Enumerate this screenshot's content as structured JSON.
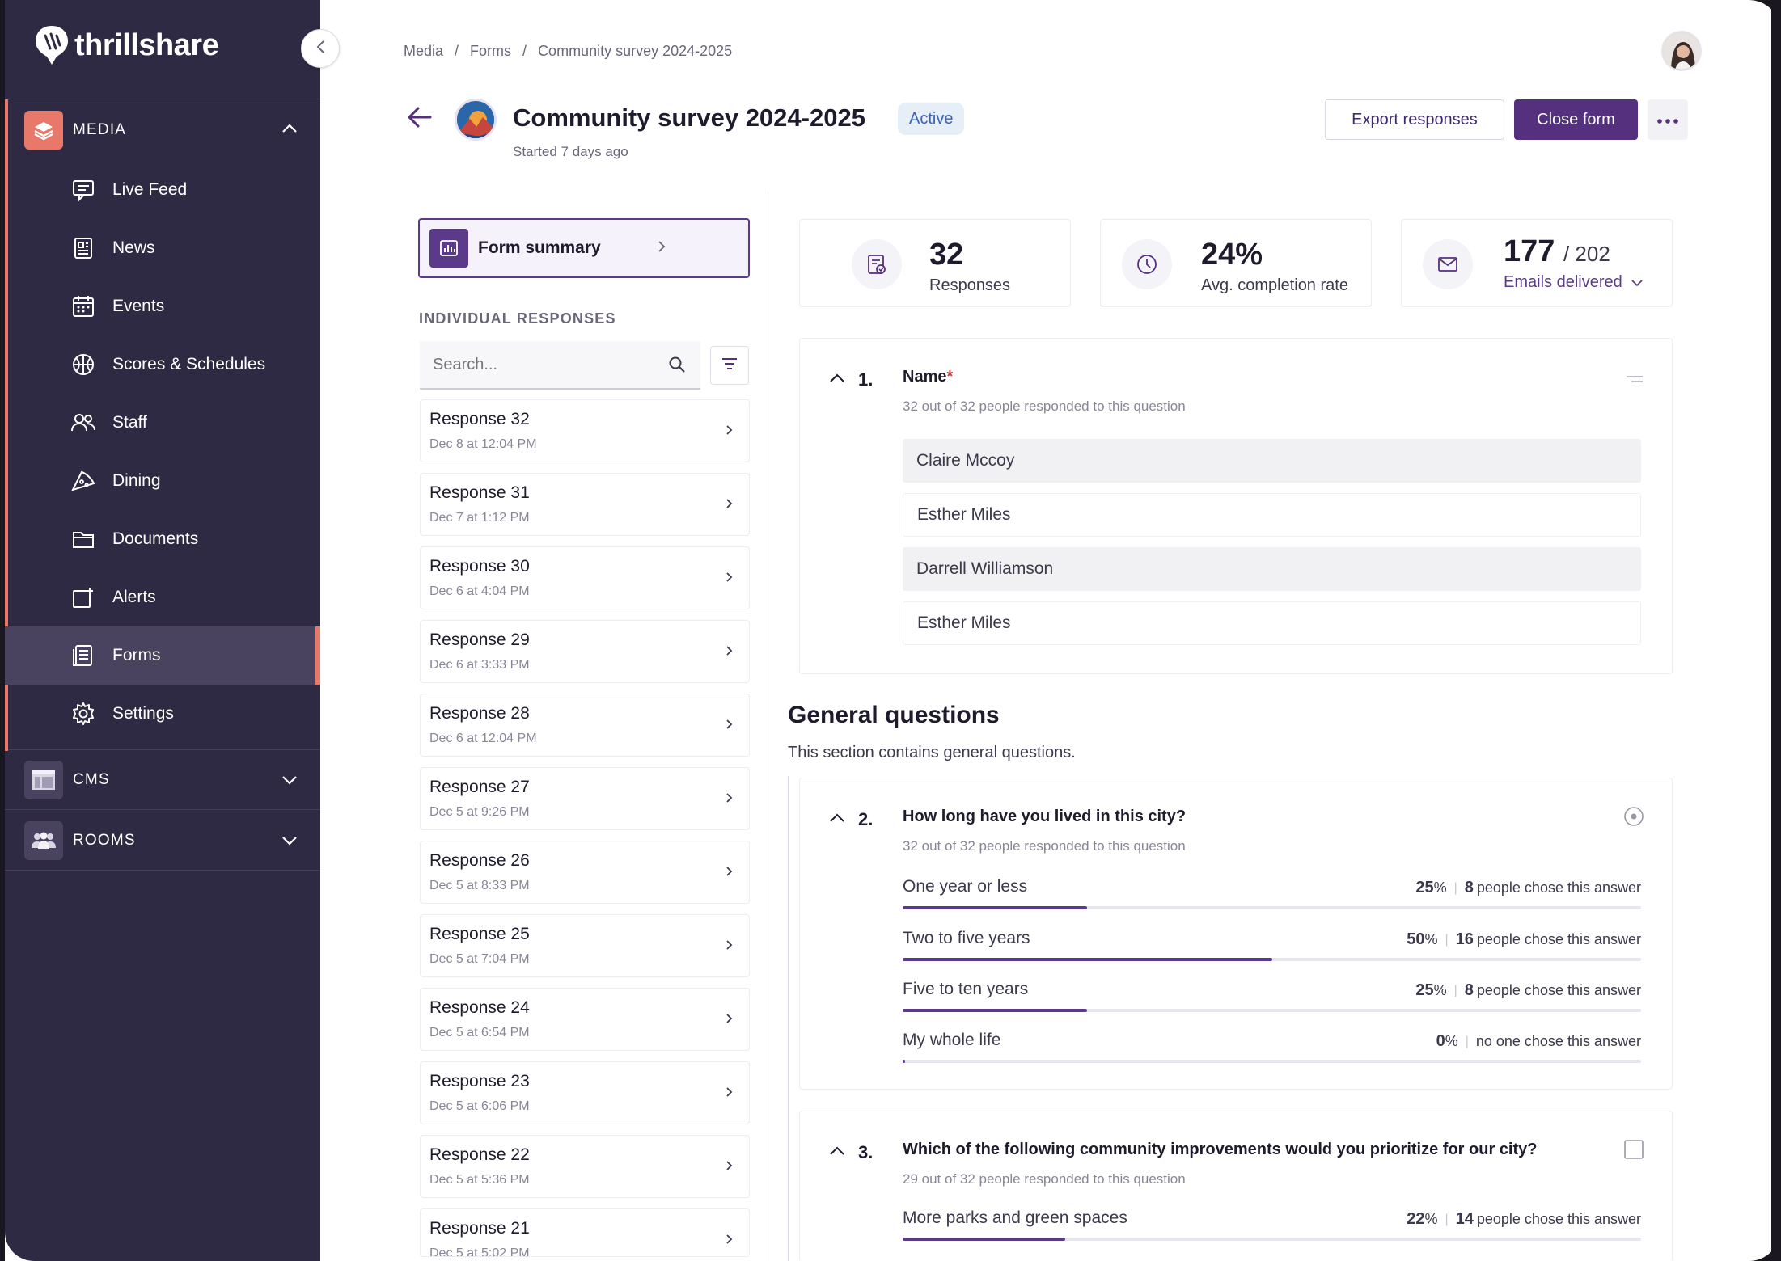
{
  "brand": {
    "name": "thrillshare"
  },
  "sidebar": {
    "media_group": {
      "label": "MEDIA",
      "icon": "layers-icon"
    },
    "items": [
      {
        "label": "Live Feed",
        "icon": "live-feed-icon"
      },
      {
        "label": "News",
        "icon": "news-icon"
      },
      {
        "label": "Events",
        "icon": "calendar-icon"
      },
      {
        "label": "Scores & Schedules",
        "icon": "ball-icon"
      },
      {
        "label": "Staff",
        "icon": "people-icon"
      },
      {
        "label": "Dining",
        "icon": "pizza-icon"
      },
      {
        "label": "Documents",
        "icon": "folder-icon"
      },
      {
        "label": "Alerts",
        "icon": "alert-icon"
      },
      {
        "label": "Forms",
        "icon": "forms-icon",
        "active": true
      },
      {
        "label": "Settings",
        "icon": "gear-icon"
      }
    ],
    "cms_group": {
      "label": "CMS",
      "icon": "layout-icon"
    },
    "rooms_group": {
      "label": "ROOMS",
      "icon": "group-icon"
    }
  },
  "breadcrumb": {
    "items": [
      "Media",
      "Forms",
      "Community survey 2024-2025"
    ],
    "separator": "/"
  },
  "header": {
    "title": "Community survey 2024-2025",
    "status": "Active",
    "started": "Started 7 days ago",
    "export_label": "Export responses",
    "close_label": "Close form"
  },
  "left_panel": {
    "form_summary_label": "Form summary",
    "section_heading": "INDIVIDUAL RESPONSES",
    "search_placeholder": "Search...",
    "responses": [
      {
        "title": "Response 32",
        "date": "Dec 8 at 12:04 PM"
      },
      {
        "title": "Response 31",
        "date": "Dec 7 at 1:12 PM"
      },
      {
        "title": "Response 30",
        "date": "Dec 6 at 4:04 PM"
      },
      {
        "title": "Response 29",
        "date": "Dec 6 at 3:33 PM"
      },
      {
        "title": "Response 28",
        "date": "Dec 6 at 12:04 PM"
      },
      {
        "title": "Response 27",
        "date": "Dec 5 at 9:26 PM"
      },
      {
        "title": "Response 26",
        "date": "Dec 5 at 8:33 PM"
      },
      {
        "title": "Response 25",
        "date": "Dec 5 at 7:04 PM"
      },
      {
        "title": "Response 24",
        "date": "Dec 5 at 6:54 PM"
      },
      {
        "title": "Response 23",
        "date": "Dec 5 at 6:06 PM"
      },
      {
        "title": "Response 22",
        "date": "Dec 5 at 5:36 PM"
      },
      {
        "title": "Response 21",
        "date": "Dec 5 at 5:02 PM"
      }
    ]
  },
  "stats": {
    "responses": {
      "value": "32",
      "label": "Responses"
    },
    "completion": {
      "value": "24%",
      "label": "Avg. completion rate"
    },
    "emails": {
      "value": "177",
      "total": "/ 202",
      "label": "Emails delivered"
    }
  },
  "q1": {
    "num": "1.",
    "title": "Name",
    "required": "*",
    "sub": "32 out of 32 people responded to this question",
    "answers": [
      "Claire Mccoy",
      "Esther Miles",
      "Darrell Williamson",
      "Esther Miles"
    ]
  },
  "section": {
    "title": "General questions",
    "desc": "This section contains general questions."
  },
  "q2": {
    "num": "2.",
    "title": "How long have you lived in this city?",
    "sub": "32 out of 32 people responded to this question",
    "options": [
      {
        "label": "One year or less",
        "pct_num": "25",
        "pct_sym": "%",
        "count": "8",
        "tail": "people chose this answer",
        "fraction": 0.25
      },
      {
        "label": "Two to five years",
        "pct_num": "50",
        "pct_sym": "%",
        "count": "16",
        "tail": "people chose this answer",
        "fraction": 0.5
      },
      {
        "label": "Five to ten years",
        "pct_num": "25",
        "pct_sym": "%",
        "count": "8",
        "tail": "people chose this answer",
        "fraction": 0.25
      },
      {
        "label": "My whole life",
        "pct_num": "0",
        "pct_sym": "%",
        "count": "",
        "tail": "no one chose this answer",
        "fraction": 0
      }
    ]
  },
  "q3": {
    "num": "3.",
    "title": "Which of the following community improvements would you prioritize for our city?",
    "sub": "29 out of 32 people responded to this question",
    "options": [
      {
        "label": "More parks and green spaces",
        "pct_num": "22",
        "pct_sym": "%",
        "count": "14",
        "tail": "people chose this answer",
        "fraction": 0.22
      }
    ]
  },
  "colors": {
    "sidebar": "#2f2a43",
    "accent": "#54307f",
    "coral": "#e8796a"
  }
}
